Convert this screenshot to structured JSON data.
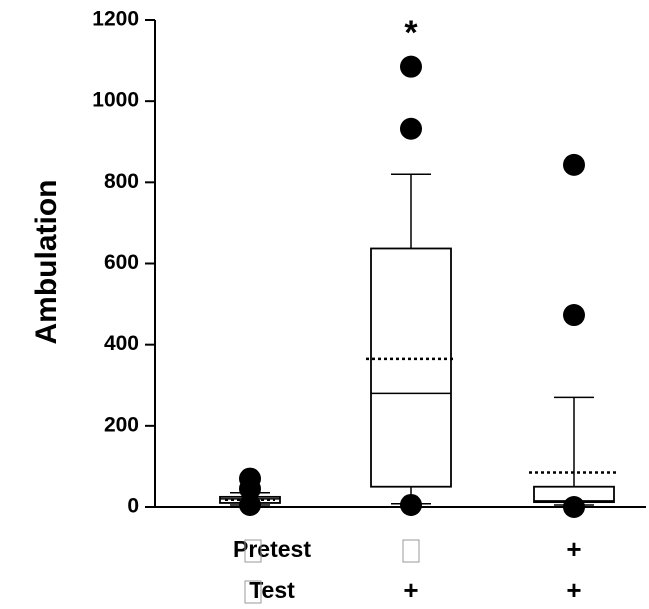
{
  "chart_data": {
    "type": "box",
    "title": "",
    "xlabel": "",
    "ylabel": "Ambulation",
    "ylim": [
      0,
      1200
    ],
    "yticks": [
      0,
      200,
      400,
      600,
      800,
      1000,
      1200
    ],
    "grid": false,
    "row_labels": [
      "Pretest",
      "Test"
    ],
    "groups": [
      {
        "conditions": [
          "□",
          "□"
        ],
        "q1": 10,
        "median": 20,
        "q3": 25,
        "whisker_low": 5,
        "whisker_high": 35,
        "mean": 18,
        "outliers": [
          70,
          45,
          5
        ],
        "annotation": ""
      },
      {
        "conditions": [
          "□",
          "+"
        ],
        "q1": 50,
        "median": 280,
        "q3": 637,
        "whisker_low": 8,
        "whisker_high": 820,
        "mean": 365,
        "outliers": [
          1085,
          932,
          5
        ],
        "annotation": "*"
      },
      {
        "conditions": [
          "+",
          "+"
        ],
        "q1": 12,
        "median": 15,
        "q3": 50,
        "whisker_low": 5,
        "whisker_high": 270,
        "mean": 85,
        "outliers": [
          843,
          473,
          0
        ],
        "annotation": ""
      }
    ]
  }
}
